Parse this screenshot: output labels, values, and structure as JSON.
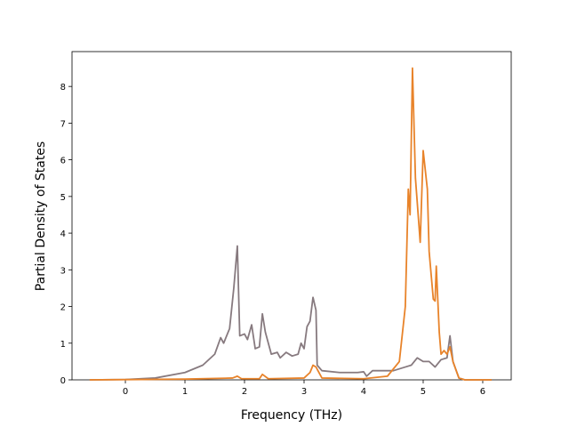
{
  "chart_data": {
    "type": "line",
    "xlabel": "Frequency (THz)",
    "ylabel": "Partial Density of States",
    "xlim": [
      -0.896,
      6.478
    ],
    "ylim": [
      0,
      8.95
    ],
    "xticks": [
      0,
      1,
      2,
      3,
      4,
      5,
      6
    ],
    "yticks": [
      0,
      1,
      2,
      3,
      4,
      5,
      6,
      7,
      8
    ],
    "series": [
      {
        "color": "#877a7f",
        "x": [
          -0.6,
          0,
          0.5,
          1,
          1.3,
          1.5,
          1.6,
          1.65,
          1.75,
          1.82,
          1.88,
          1.92,
          2.0,
          2.05,
          2.12,
          2.18,
          2.25,
          2.3,
          2.35,
          2.45,
          2.55,
          2.6,
          2.7,
          2.8,
          2.9,
          2.95,
          3.0,
          3.05,
          3.1,
          3.15,
          3.2,
          3.22,
          3.3,
          3.6,
          3.9,
          4.0,
          4.05,
          4.15,
          4.5,
          4.7,
          4.8,
          4.9,
          5.0,
          5.1,
          5.2,
          5.3,
          5.4,
          5.45,
          5.5,
          5.6,
          5.7,
          6.15
        ],
        "values": [
          0,
          0.01,
          0.05,
          0.2,
          0.4,
          0.7,
          1.15,
          1.0,
          1.4,
          2.5,
          3.65,
          1.2,
          1.25,
          1.1,
          1.5,
          0.85,
          0.9,
          1.8,
          1.3,
          0.7,
          0.75,
          0.6,
          0.75,
          0.65,
          0.7,
          1.0,
          0.85,
          1.45,
          1.6,
          2.25,
          1.9,
          0.4,
          0.25,
          0.2,
          0.2,
          0.22,
          0.1,
          0.25,
          0.25,
          0.35,
          0.4,
          0.6,
          0.5,
          0.5,
          0.35,
          0.55,
          0.6,
          1.2,
          0.5,
          0.05,
          0,
          0
        ]
      },
      {
        "color": "#e8832a",
        "x": [
          -0.6,
          1,
          1.8,
          1.88,
          1.95,
          2.25,
          2.3,
          2.4,
          3.0,
          3.1,
          3.15,
          3.2,
          3.3,
          4.0,
          4.4,
          4.6,
          4.7,
          4.75,
          4.78,
          4.82,
          4.87,
          4.95,
          5.0,
          5.07,
          5.1,
          5.17,
          5.2,
          5.22,
          5.27,
          5.3,
          5.35,
          5.4,
          5.45,
          5.5,
          5.6,
          5.7,
          6.15
        ],
        "values": [
          0,
          0.02,
          0.05,
          0.1,
          0.03,
          0.03,
          0.15,
          0.03,
          0.05,
          0.2,
          0.4,
          0.35,
          0.05,
          0.03,
          0.1,
          0.5,
          2.0,
          5.2,
          4.5,
          8.5,
          5.5,
          3.75,
          6.25,
          5.2,
          3.5,
          2.2,
          2.15,
          3.1,
          1.3,
          0.7,
          0.8,
          0.7,
          0.9,
          0.5,
          0.05,
          0,
          0
        ]
      }
    ]
  }
}
